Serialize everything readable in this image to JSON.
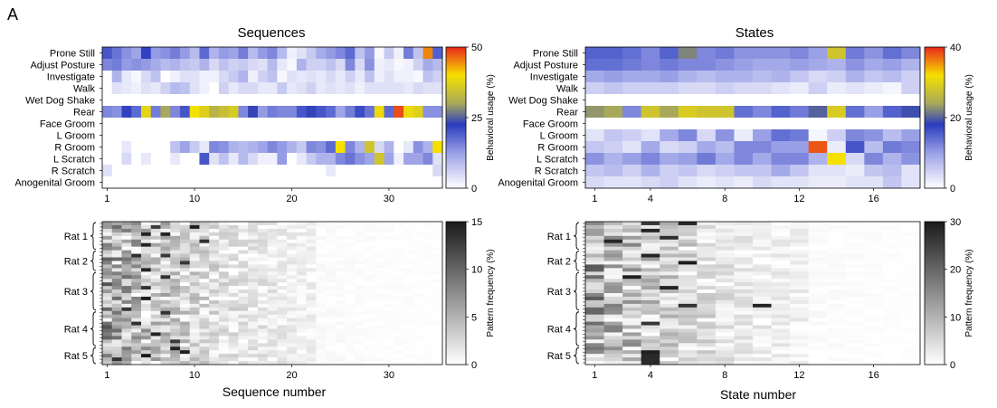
{
  "panel_letter": "A",
  "colors": {
    "heat_low": "#ffffff",
    "heat_mid1": "#9aa0e6",
    "heat_mid2": "#2a3dbf",
    "heat_mid3": "#a8a85a",
    "heat_mid4": "#f5e000",
    "heat_high": "#e8281c",
    "gray_low": "#ffffff",
    "gray_high": "#1a1a1a"
  },
  "chart_data": [
    {
      "id": "seq_usage",
      "type": "heatmap",
      "title": "Sequences",
      "rows": [
        "Prone Still",
        "Adjust Posture",
        "Investigate",
        "Walk",
        "Wet Dog Shake",
        "Rear",
        "Face Groom",
        "L Groom",
        "R Groom",
        "L Scratch",
        "R Scratch",
        "Anogenital Groom"
      ],
      "n_cols": 35,
      "x_ticks": [
        1,
        10,
        20,
        30
      ],
      "xlabel": "",
      "colorbar": {
        "label": "Behavioral usage (%)",
        "min": 0,
        "max": 50,
        "ticks": [
          0,
          25,
          50
        ],
        "colormap": "parula-like"
      },
      "values": [
        [
          20,
          17,
          14,
          12,
          22,
          13,
          14,
          16,
          13,
          9,
          18,
          10,
          13,
          12,
          16,
          9,
          13,
          15,
          9,
          2,
          4,
          7,
          11,
          13,
          15,
          18,
          8,
          13,
          1,
          7,
          2,
          16,
          8,
          45,
          19
        ],
        [
          15,
          16,
          13,
          14,
          13,
          11,
          9,
          10,
          8,
          7,
          10,
          5,
          8,
          6,
          7,
          5,
          4,
          9,
          3,
          1,
          10,
          6,
          6,
          8,
          5,
          15,
          5,
          14,
          2,
          3,
          1,
          2,
          6,
          11,
          9
        ],
        [
          0,
          10,
          3,
          1,
          5,
          8,
          0,
          2,
          4,
          4,
          2,
          2,
          5,
          7,
          10,
          2,
          6,
          8,
          1,
          4,
          3,
          4,
          3,
          5,
          3,
          6,
          3,
          8,
          2,
          4,
          2,
          2,
          1,
          8,
          6
        ],
        [
          0,
          4,
          3,
          2,
          4,
          3,
          6,
          9,
          8,
          4,
          2,
          0,
          6,
          3,
          5,
          5,
          3,
          3,
          7,
          3,
          4,
          6,
          3,
          4,
          3,
          4,
          2,
          4,
          4,
          4,
          4,
          3,
          5,
          4,
          4
        ],
        [
          0,
          0,
          0,
          0,
          0,
          0,
          0,
          0,
          0,
          0,
          0,
          0,
          0,
          0,
          0,
          0,
          0,
          0,
          0,
          0,
          0,
          0,
          0,
          0,
          0,
          0,
          0,
          0,
          0,
          0,
          0,
          0,
          0,
          0,
          0
        ],
        [
          15,
          14,
          22,
          18,
          38,
          16,
          30,
          15,
          20,
          40,
          37,
          32,
          34,
          36,
          15,
          23,
          13,
          16,
          15,
          15,
          20,
          23,
          20,
          18,
          12,
          16,
          21,
          17,
          39,
          18,
          48,
          39,
          37,
          14,
          14
        ],
        [
          0,
          0,
          0,
          0,
          0,
          0,
          0,
          0,
          0,
          0,
          0,
          0,
          0,
          0,
          0,
          0,
          0,
          0,
          0,
          0,
          0,
          0,
          0,
          0,
          0,
          0,
          0,
          0,
          0,
          0,
          0,
          0,
          0,
          0,
          0
        ],
        [
          0,
          0,
          0,
          0,
          0,
          0,
          0,
          0,
          0,
          0,
          0,
          0,
          0,
          0,
          0,
          0,
          0,
          0,
          0,
          0,
          0,
          0,
          0,
          0,
          0,
          0,
          0,
          0,
          0,
          0,
          0,
          0,
          0,
          0,
          0
        ],
        [
          0,
          0,
          3,
          0,
          0,
          0,
          0,
          8,
          12,
          7,
          3,
          15,
          14,
          10,
          9,
          10,
          12,
          15,
          13,
          10,
          7,
          15,
          14,
          18,
          40,
          15,
          10,
          35,
          5,
          10,
          0,
          3,
          14,
          10,
          40
        ],
        [
          0,
          0,
          5,
          0,
          3,
          0,
          0,
          3,
          0,
          0,
          20,
          4,
          8,
          3,
          9,
          5,
          2,
          2,
          13,
          0,
          3,
          7,
          10,
          10,
          15,
          17,
          14,
          12,
          35,
          12,
          2,
          12,
          12,
          15,
          4
        ],
        [
          4,
          0,
          0,
          0,
          0,
          0,
          0,
          0,
          0,
          0,
          0,
          0,
          0,
          0,
          0,
          0,
          0,
          0,
          0,
          0,
          0,
          0,
          0,
          3,
          0,
          0,
          0,
          0,
          0,
          0,
          0,
          0,
          0,
          0,
          5
        ],
        [
          0,
          0,
          0,
          0,
          0,
          0,
          0,
          0,
          0,
          0,
          0,
          0,
          0,
          0,
          0,
          0,
          0,
          0,
          0,
          0,
          0,
          0,
          0,
          0,
          0,
          0,
          0,
          0,
          0,
          0,
          0,
          0,
          0,
          0,
          0
        ]
      ]
    },
    {
      "id": "state_usage",
      "type": "heatmap",
      "title": "States",
      "rows": [
        "Prone Still",
        "Adjust Posture",
        "Investigate",
        "Walk",
        "Wet Dog Shake",
        "Rear",
        "Face Groom",
        "L Groom",
        "R Groom",
        "L Scratch",
        "R Scratch",
        "Anogenital Groom"
      ],
      "n_cols": 18,
      "x_ticks": [
        1,
        4,
        8,
        12,
        16
      ],
      "xlabel": "",
      "colorbar": {
        "label": "Behavioral usage (%)",
        "min": 0,
        "max": 40,
        "ticks": [
          0,
          20,
          40
        ],
        "colormap": "parula-like"
      },
      "values": [
        [
          15,
          15,
          14,
          12,
          15,
          22,
          12,
          13,
          11,
          11,
          11,
          12,
          10,
          28,
          13,
          11,
          14,
          12
        ],
        [
          14,
          14,
          13,
          12,
          13,
          12,
          12,
          11,
          10,
          9,
          9,
          10,
          9,
          8,
          11,
          9,
          10,
          8
        ],
        [
          9,
          10,
          9,
          9,
          10,
          8,
          7,
          8,
          8,
          7,
          8,
          6,
          4,
          5,
          8,
          6,
          7,
          5
        ],
        [
          5,
          6,
          5,
          5,
          5,
          4,
          4,
          5,
          4,
          4,
          3,
          2,
          5,
          2,
          3,
          2,
          1,
          5
        ],
        [
          0,
          0,
          0,
          0,
          0,
          0,
          0,
          0,
          0,
          0,
          0,
          0,
          0,
          0,
          0,
          0,
          0,
          0
        ],
        [
          23,
          24,
          12,
          28,
          24,
          29,
          28,
          28,
          14,
          12,
          15,
          13,
          20,
          29,
          14,
          10,
          15,
          19
        ],
        [
          0,
          0,
          0,
          0,
          0,
          0,
          0,
          0,
          0,
          0,
          0,
          0,
          0,
          0,
          0,
          0,
          0,
          0
        ],
        [
          3,
          6,
          5,
          3,
          9,
          12,
          4,
          11,
          2,
          10,
          14,
          13,
          1,
          5,
          12,
          11,
          7,
          10
        ],
        [
          6,
          5,
          3,
          9,
          4,
          5,
          9,
          7,
          12,
          12,
          10,
          10,
          38,
          2,
          16,
          7,
          13,
          12
        ],
        [
          11,
          8,
          10,
          12,
          9,
          10,
          13,
          9,
          12,
          9,
          12,
          12,
          8,
          32,
          4,
          12,
          8,
          11
        ],
        [
          6,
          7,
          5,
          8,
          5,
          6,
          4,
          5,
          6,
          6,
          9,
          6,
          3,
          3,
          2,
          6,
          7,
          3
        ],
        [
          4,
          3,
          3,
          4,
          5,
          3,
          2,
          3,
          2,
          4,
          3,
          3,
          2,
          2,
          3,
          3,
          6,
          3
        ]
      ]
    },
    {
      "id": "seq_freq",
      "type": "heatmap",
      "xlabel": "Sequence number",
      "n_cols": 35,
      "n_rows": 40,
      "x_ticks": [
        1,
        10,
        20,
        30
      ],
      "group_labels": [
        "Rat 1",
        "Rat 2",
        "Rat 3",
        "Rat 4",
        "Rat 5"
      ],
      "group_rows": [
        [
          0,
          8
        ],
        [
          8,
          14
        ],
        [
          14,
          25
        ],
        [
          25,
          35
        ],
        [
          35,
          40
        ]
      ],
      "colorbar": {
        "label": "Pattern frequency (%)",
        "min": 0,
        "max": 15,
        "ticks": [
          0,
          5,
          10,
          15
        ],
        "colormap": "gray-reversed"
      },
      "values_note_seed": "random",
      "values_seed": 7,
      "values_max": 15,
      "values_peak": [
        [
          1,
          5
        ],
        [
          1,
          9
        ],
        [
          3,
          4
        ],
        [
          3,
          6
        ],
        [
          5,
          10
        ],
        [
          6,
          4
        ],
        [
          9,
          3
        ],
        [
          9,
          6
        ],
        [
          11,
          8
        ],
        [
          13,
          4
        ],
        [
          15,
          6
        ],
        [
          18,
          4
        ],
        [
          21,
          4
        ],
        [
          24,
          2
        ],
        [
          25,
          6
        ],
        [
          28,
          3
        ],
        [
          31,
          5
        ],
        [
          33,
          7
        ],
        [
          35,
          7
        ],
        [
          36,
          8
        ],
        [
          37,
          4
        ],
        [
          38,
          1
        ]
      ]
    },
    {
      "id": "state_freq",
      "type": "heatmap",
      "xlabel": "State number",
      "n_cols": 18,
      "n_rows": 40,
      "x_ticks": [
        1,
        4,
        8,
        12,
        16
      ],
      "group_labels": [
        "Rat 1",
        "Rat 2",
        "Rat 3",
        "Rat 4",
        "Rat 5"
      ],
      "group_rows": [
        [
          0,
          8
        ],
        [
          8,
          14
        ],
        [
          14,
          25
        ],
        [
          25,
          35
        ],
        [
          35,
          40
        ]
      ],
      "colorbar": {
        "label": "Pattern frequency (%)",
        "min": 0,
        "max": 30,
        "ticks": [
          0,
          10,
          20,
          30
        ],
        "colormap": "gray-reversed"
      },
      "values_seed": 13,
      "values_max": 30,
      "values_peak": [
        [
          0,
          3
        ],
        [
          0,
          5
        ],
        [
          2,
          3
        ],
        [
          4,
          4
        ],
        [
          5,
          1
        ],
        [
          9,
          3
        ],
        [
          11,
          5
        ],
        [
          15,
          2
        ],
        [
          18,
          4
        ],
        [
          23,
          5
        ],
        [
          23,
          9
        ],
        [
          28,
          3
        ],
        [
          36,
          3
        ],
        [
          37,
          3
        ],
        [
          38,
          3
        ],
        [
          39,
          3
        ]
      ]
    }
  ]
}
